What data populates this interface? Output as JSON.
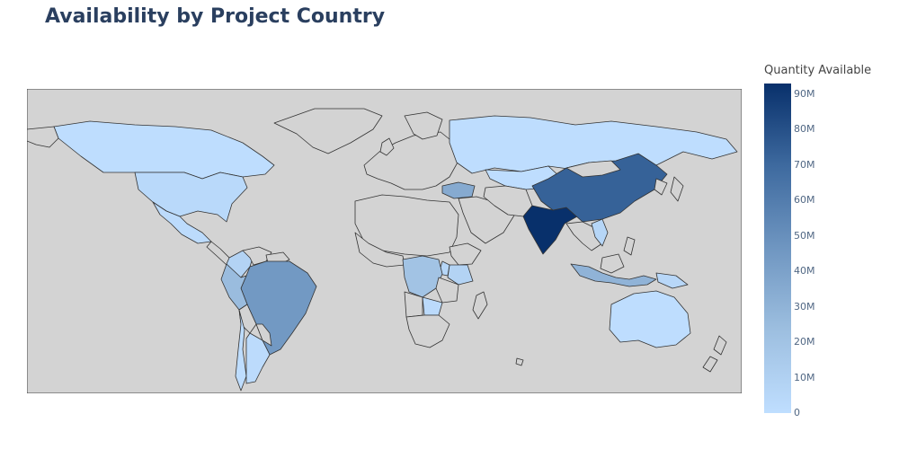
{
  "title": "Availability by Project Country",
  "colors": {
    "ocean": "#d3d3d3",
    "land_nodata": "#d3d3d3",
    "border": "#333333",
    "scale": [
      "#bfdeff",
      "#9dbfe0",
      "#6f96c1",
      "#3e6a9f",
      "#08306b"
    ]
  },
  "chart_data": {
    "type": "choropleth",
    "title": "Availability by Project Country",
    "colorbar": {
      "title": "Quantity Available",
      "range": [
        0,
        93000000
      ],
      "ticks": [
        {
          "value": 0,
          "label": "0"
        },
        {
          "value": 10000000,
          "label": "10M"
        },
        {
          "value": 20000000,
          "label": "20M"
        },
        {
          "value": 30000000,
          "label": "30M"
        },
        {
          "value": 40000000,
          "label": "40M"
        },
        {
          "value": 50000000,
          "label": "50M"
        },
        {
          "value": 60000000,
          "label": "60M"
        },
        {
          "value": 70000000,
          "label": "70M"
        },
        {
          "value": 80000000,
          "label": "80M"
        },
        {
          "value": 90000000,
          "label": "90M"
        }
      ]
    },
    "locations": [
      {
        "country": "India",
        "value": 93000000
      },
      {
        "country": "China",
        "value": 73000000
      },
      {
        "country": "Brazil",
        "value": 45000000
      },
      {
        "country": "Turkey",
        "value": 35000000
      },
      {
        "country": "Indonesia",
        "value": 30000000
      },
      {
        "country": "Democratic Republic of the Congo",
        "value": 20000000
      },
      {
        "country": "Peru",
        "value": 25000000
      },
      {
        "country": "Colombia",
        "value": 8000000
      },
      {
        "country": "Thailand",
        "value": 12000000
      },
      {
        "country": "Vietnam",
        "value": 6000000
      },
      {
        "country": "Kenya",
        "value": 8000000
      },
      {
        "country": "Uganda",
        "value": 6000000
      },
      {
        "country": "Papua New Guinea",
        "value": 5000000
      },
      {
        "country": "Russia",
        "value": 1000000
      },
      {
        "country": "United States",
        "value": 4000000
      },
      {
        "country": "Canada",
        "value": 1000000
      },
      {
        "country": "Mexico",
        "value": 2000000
      },
      {
        "country": "Australia",
        "value": 1000000
      },
      {
        "country": "Kazakhstan",
        "value": 1000000
      },
      {
        "country": "Argentina",
        "value": 2000000
      },
      {
        "country": "Chile",
        "value": 1000000
      },
      {
        "country": "Zambia",
        "value": 3000000
      },
      {
        "country": "South Africa",
        "value": 1000000
      }
    ]
  }
}
